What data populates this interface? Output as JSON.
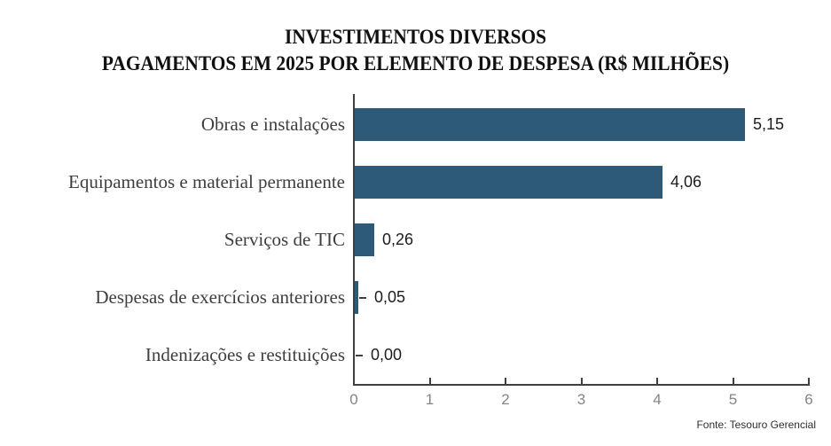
{
  "source": "Fonte: Tesouro Gerencial",
  "colors": {
    "bar": "#2d5a78",
    "axis": "#3f3f3f",
    "tick_label": "#858585",
    "value_label": "#1d1d1d",
    "category_label": "#3e3e3e",
    "title": "#101010",
    "background": "#ffffff"
  },
  "chart_data": {
    "type": "bar",
    "orientation": "horizontal",
    "title": "INVESTIMENTOS DIVERSOS — PAGAMENTOS EM 2025 POR ELEMENTO DE DESPESA (R$ MILHÕES)",
    "title_lines": [
      "INVESTIMENTOS DIVERSOS",
      "PAGAMENTOS EM 2025 POR ELEMENTO DE DESPESA (R$ MILHÕES)"
    ],
    "categories": [
      "Obras e instalações",
      "Equipamentos e material permanente",
      "Serviços de TIC",
      "Despesas de exercícios anteriores",
      "Indenizações e restituições"
    ],
    "values": [
      5.15,
      4.06,
      0.26,
      0.05,
      0.0
    ],
    "value_labels": [
      "5,15",
      "4,06",
      "0,26",
      "0,05",
      "0,00"
    ],
    "xlim": [
      0,
      6
    ],
    "x_ticks": [
      0,
      1,
      2,
      3,
      4,
      5,
      6
    ],
    "x_tick_labels": [
      "0",
      "1",
      "2",
      "3",
      "4",
      "5",
      "6"
    ],
    "grid": false,
    "legend": false
  }
}
